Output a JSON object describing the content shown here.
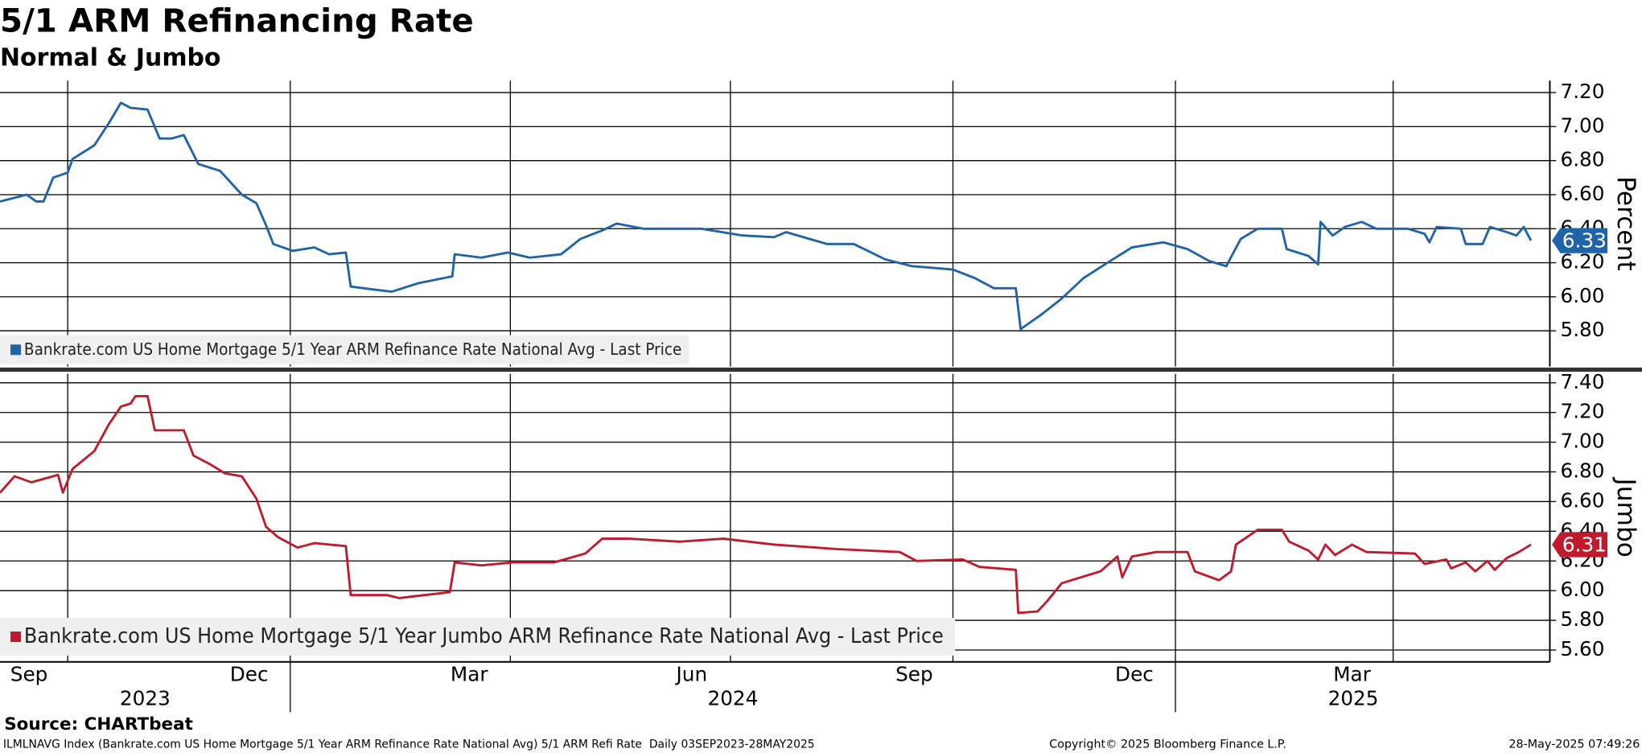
{
  "header": {
    "title": "5/1 ARM Refinancing Rate",
    "subtitle": "Normal & Jumbo"
  },
  "footer": {
    "source": "Source: CHARTbeat",
    "description": "ILMLNAVG Index (Bankrate.com US Home Mortgage 5/1 Year ARM Refinance Rate National Avg) 5/1 ARM Refi Rate  Daily 03SEP2023-28MAY2025",
    "copyright": "Copyright© 2025 Bloomberg Finance L.P.",
    "timestamp": "28-May-2025 07:49:26"
  },
  "chart_data": [
    {
      "type": "line",
      "ylabel": "Percent",
      "xlim": [
        "2023-09-03",
        "2025-05-28"
      ],
      "ylim": [
        5.59,
        7.27
      ],
      "yticks": [
        {
          "value": 5.8,
          "label": "5.80"
        },
        {
          "value": 6,
          "label": "6.00"
        },
        {
          "value": 6.2,
          "label": "6.20"
        },
        {
          "value": 6.4,
          "label": "6.40"
        },
        {
          "value": 6.6,
          "label": "6.60"
        },
        {
          "value": 6.8,
          "label": "6.80"
        },
        {
          "value": 7,
          "label": "7.00"
        },
        {
          "value": 7.2,
          "label": "7.20"
        }
      ],
      "grid": true,
      "series": [
        {
          "name": "Bankrate.com US Home Mortgage 5/1 Year ARM Refinance Rate National Avg - Last Price",
          "color": "#1f63a8",
          "x": [
            "2023-09-03",
            "2023-09-14",
            "2023-09-18",
            "2023-09-21",
            "2023-09-25",
            "2023-10-01",
            "2023-10-03",
            "2023-10-12",
            "2023-10-18",
            "2023-10-23",
            "2023-10-27",
            "2023-11-03",
            "2023-11-08",
            "2023-11-13",
            "2023-11-18",
            "2023-11-24",
            "2023-12-03",
            "2023-12-12",
            "2023-12-18",
            "2023-12-22",
            "2023-12-25",
            "2024-01-02",
            "2024-01-11",
            "2024-01-17",
            "2024-01-24",
            "2024-01-26",
            "2024-02-06",
            "2024-02-12",
            "2024-02-23",
            "2024-03-08",
            "2024-03-09",
            "2024-03-20",
            "2024-03-31",
            "2024-04-09",
            "2024-04-22",
            "2024-04-30",
            "2024-05-09",
            "2024-05-15",
            "2024-05-26",
            "2024-06-10",
            "2024-06-19",
            "2024-07-06",
            "2024-07-19",
            "2024-07-24",
            "2024-08-10",
            "2024-08-21",
            "2024-09-03",
            "2024-09-14",
            "2024-10-01",
            "2024-10-10",
            "2024-10-18",
            "2024-10-27",
            "2024-10-29",
            "2024-11-07",
            "2024-11-15",
            "2024-11-24",
            "2024-12-05",
            "2024-12-14",
            "2024-12-27",
            "2025-01-06",
            "2025-01-15",
            "2025-01-22",
            "2025-01-28",
            "2025-02-04",
            "2025-02-14",
            "2025-02-16",
            "2025-02-25",
            "2025-03-01",
            "2025-03-02",
            "2025-03-07",
            "2025-03-12",
            "2025-03-19",
            "2025-03-25",
            "2025-04-07",
            "2025-04-14",
            "2025-04-16",
            "2025-04-19",
            "2025-04-29",
            "2025-05-01",
            "2025-05-08",
            "2025-05-11",
            "2025-05-18",
            "2025-05-22",
            "2025-05-25",
            "2025-05-28"
          ],
          "values": [
            6.56,
            6.6,
            6.56,
            6.56,
            6.7,
            6.73,
            6.81,
            6.89,
            7.02,
            7.14,
            7.11,
            7.1,
            6.93,
            6.93,
            6.95,
            6.78,
            6.74,
            6.6,
            6.55,
            6.42,
            6.31,
            6.27,
            6.29,
            6.25,
            6.26,
            6.06,
            6.04,
            6.03,
            6.08,
            6.12,
            6.25,
            6.23,
            6.26,
            6.23,
            6.25,
            6.34,
            6.39,
            6.43,
            6.4,
            6.4,
            6.4,
            6.36,
            6.35,
            6.38,
            6.31,
            6.31,
            6.22,
            6.18,
            6.16,
            6.11,
            6.05,
            6.05,
            5.81,
            5.9,
            5.99,
            6.11,
            6.21,
            6.29,
            6.32,
            6.28,
            6.21,
            6.18,
            6.34,
            6.4,
            6.4,
            6.28,
            6.24,
            6.19,
            6.44,
            6.36,
            6.41,
            6.44,
            6.4,
            6.4,
            6.37,
            6.32,
            6.41,
            6.4,
            6.31,
            6.31,
            6.41,
            6.38,
            6.36,
            6.41,
            6.33
          ]
        }
      ]
    },
    {
      "type": "line",
      "ylabel": "Jumbo",
      "xlim": [
        "2023-09-03",
        "2025-05-28"
      ],
      "xticks": [
        {
          "value": "2023-09",
          "label": "Sep"
        },
        {
          "value": "2023-12",
          "label": "Dec"
        },
        {
          "value": "2024-03",
          "label": "Mar"
        },
        {
          "value": "2024-06",
          "label": "Jun"
        },
        {
          "value": "2024-09",
          "label": "Sep"
        },
        {
          "value": "2024-12",
          "label": "Dec"
        },
        {
          "value": "2025-03",
          "label": "Mar"
        }
      ],
      "years": [
        2023,
        2024,
        2025
      ],
      "ylim": [
        5.52,
        7.46
      ],
      "yticks": [
        {
          "value": 5.6,
          "label": "5.60"
        },
        {
          "value": 5.8,
          "label": "5.80"
        },
        {
          "value": 6,
          "label": "6.00"
        },
        {
          "value": 6.2,
          "label": "6.20"
        },
        {
          "value": 6.4,
          "label": "6.40"
        },
        {
          "value": 6.6,
          "label": "6.60"
        },
        {
          "value": 6.8,
          "label": "6.80"
        },
        {
          "value": 7,
          "label": "7.00"
        },
        {
          "value": 7.2,
          "label": "7.20"
        },
        {
          "value": 7.4,
          "label": "7.40"
        }
      ],
      "grid": true,
      "series": [
        {
          "name": "Bankrate.com US Home Mortgage 5/1 Year Jumbo ARM Refinance Rate National Avg - Last Price",
          "color": "#c01a2c",
          "x": [
            "2023-09-03",
            "2023-09-09",
            "2023-09-16",
            "2023-09-27",
            "2023-09-29",
            "2023-10-03",
            "2023-10-12",
            "2023-10-18",
            "2023-10-23",
            "2023-10-27",
            "2023-10-29",
            "2023-11-03",
            "2023-11-06",
            "2023-11-18",
            "2023-11-22",
            "2023-11-29",
            "2023-12-05",
            "2023-12-12",
            "2023-12-18",
            "2023-12-22",
            "2023-12-27",
            "2024-01-04",
            "2024-01-11",
            "2024-01-24",
            "2024-01-26",
            "2024-02-10",
            "2024-02-15",
            "2024-03-07",
            "2024-03-09",
            "2024-03-20",
            "2024-04-02",
            "2024-04-19",
            "2024-05-02",
            "2024-05-09",
            "2024-05-20",
            "2024-06-10",
            "2024-06-28",
            "2024-07-19",
            "2024-08-14",
            "2024-09-09",
            "2024-09-16",
            "2024-10-05",
            "2024-10-12",
            "2024-10-27",
            "2024-10-28",
            "2024-11-05",
            "2024-11-09",
            "2024-11-15",
            "2024-12-01",
            "2024-12-08",
            "2024-12-10",
            "2024-12-14",
            "2024-12-24",
            "2025-01-06",
            "2025-01-09",
            "2025-01-19",
            "2025-01-24",
            "2025-01-26",
            "2025-02-04",
            "2025-02-14",
            "2025-02-17",
            "2025-02-25",
            "2025-03-01",
            "2025-03-04",
            "2025-03-08",
            "2025-03-15",
            "2025-03-21",
            "2025-04-10",
            "2025-04-14",
            "2025-04-23",
            "2025-04-25",
            "2025-05-01",
            "2025-05-05",
            "2025-05-10",
            "2025-05-13",
            "2025-05-18",
            "2025-05-23",
            "2025-05-28"
          ],
          "values": [
            6.66,
            6.77,
            6.73,
            6.78,
            6.66,
            6.82,
            6.94,
            7.12,
            7.24,
            7.26,
            7.31,
            7.31,
            7.08,
            7.08,
            6.91,
            6.85,
            6.79,
            6.77,
            6.62,
            6.43,
            6.36,
            6.29,
            6.32,
            6.3,
            5.97,
            5.97,
            5.95,
            5.99,
            6.19,
            6.17,
            6.19,
            6.19,
            6.25,
            6.35,
            6.35,
            6.33,
            6.35,
            6.31,
            6.28,
            6.26,
            6.2,
            6.21,
            6.16,
            6.14,
            5.85,
            5.86,
            5.93,
            6.05,
            6.13,
            6.23,
            6.09,
            6.23,
            6.26,
            6.26,
            6.13,
            6.07,
            6.13,
            6.31,
            6.41,
            6.41,
            6.33,
            6.27,
            6.21,
            6.31,
            6.24,
            6.31,
            6.26,
            6.25,
            6.18,
            6.21,
            6.15,
            6.19,
            6.13,
            6.2,
            6.14,
            6.22,
            6.26,
            6.31
          ]
        }
      ]
    }
  ]
}
